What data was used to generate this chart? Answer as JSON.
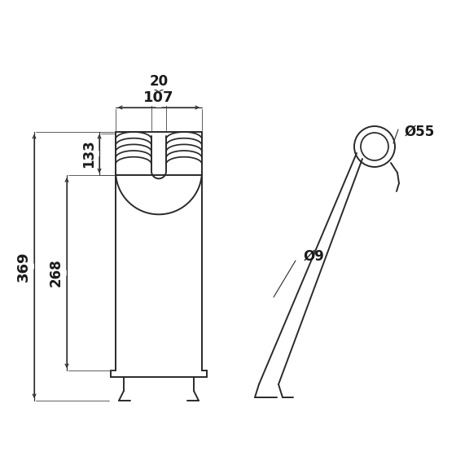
{
  "bg_color": "#ffffff",
  "line_color": "#2a2a2a",
  "dim_color": "#1a1a1a",
  "fig_width": 5.6,
  "fig_height": 5.6,
  "dpi": 100,
  "dimensions": {
    "total_height": "369",
    "body_height": "268",
    "coil_height": "133",
    "width_top": "107",
    "width_inner": "20",
    "dia_wire": "Ø9",
    "dia_eye": "Ø55"
  }
}
